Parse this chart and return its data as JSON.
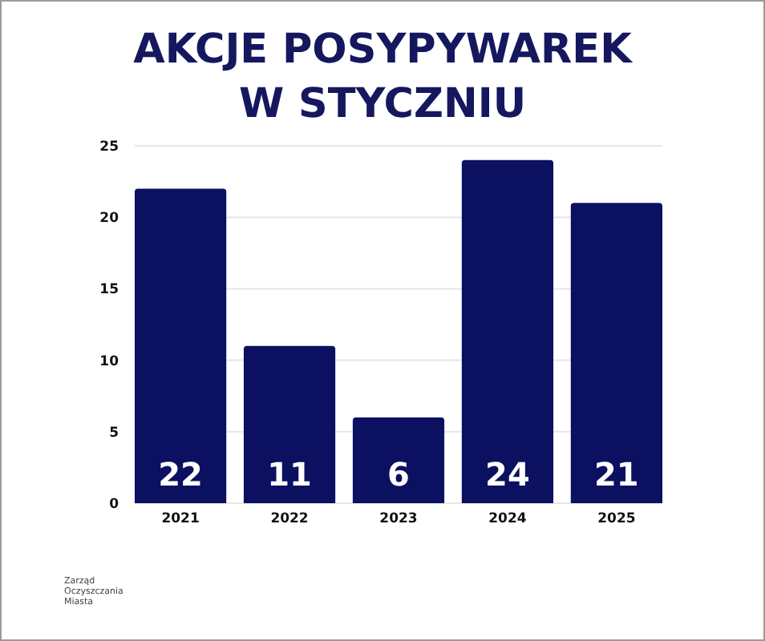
{
  "chart_data": {
    "type": "bar",
    "title": "AKCJE POSYPYWAREK\nW STYCZNIU",
    "categories": [
      "2021",
      "2022",
      "2023",
      "2024",
      "2025"
    ],
    "values": [
      22,
      11,
      6,
      24,
      21
    ],
    "color": "#0b1061",
    "ylim": [
      0,
      25
    ],
    "yticks": [
      0,
      5,
      10,
      15,
      20,
      25
    ],
    "grid": "y",
    "data_labels": true,
    "annotations": [
      "Zarząd Oczyszczania Miasta"
    ]
  }
}
